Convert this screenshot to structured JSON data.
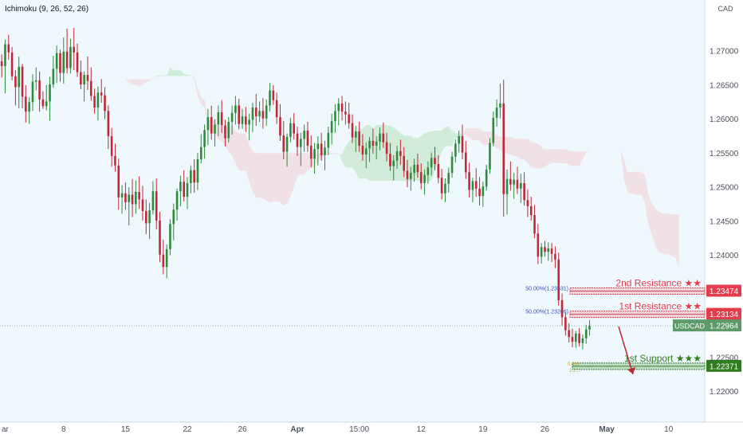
{
  "indicator": {
    "label": "Ichimoku (9, 26, 52, 26)"
  },
  "colors": {
    "plot_bg": "#eef8fd",
    "up": "#2e8b3a",
    "down": "#c0283a",
    "cloud_bull": "#cbe9d2",
    "cloud_bear": "#f1dde2",
    "resistance": "#e53c4b",
    "support": "#2f7d1e",
    "last_price": "#5c9a6a",
    "axis_text": "#4a4f5a"
  },
  "chart_data": {
    "type": "candlestick",
    "symbol": "USDCAD",
    "currency": "CAD",
    "ylim": [
      1.2155,
      1.2775
    ],
    "y_ticks": [
      "1.27000",
      "1.26500",
      "1.26000",
      "1.25500",
      "1.25000",
      "1.24500",
      "1.24000",
      "1.22500",
      "1.22000"
    ],
    "x_ticks": [
      "ar",
      "8",
      "15",
      "22",
      "26",
      "Apr",
      "15:00",
      "12",
      "19",
      "26",
      "May",
      "10"
    ],
    "x_tick_bars": [
      0,
      18,
      36,
      54,
      70,
      86,
      104,
      122,
      140,
      158,
      176,
      194
    ],
    "n_bars": 205,
    "candles": [
      [
        1.2685,
        1.2695,
        1.2661,
        1.2678
      ],
      [
        1.2678,
        1.2717,
        1.2638,
        1.271
      ],
      [
        1.271,
        1.2724,
        1.2687,
        1.2698
      ],
      [
        1.2698,
        1.2706,
        1.2657,
        1.2663
      ],
      [
        1.2663,
        1.2672,
        1.262,
        1.2647
      ],
      [
        1.2647,
        1.2692,
        1.2616,
        1.2677
      ],
      [
        1.2677,
        1.2681,
        1.2616,
        1.2633
      ],
      [
        1.2633,
        1.265,
        1.2595,
        1.2611
      ],
      [
        1.2611,
        1.2632,
        1.2593,
        1.2625
      ],
      [
        1.2625,
        1.2666,
        1.2612,
        1.2655
      ],
      [
        1.2655,
        1.2676,
        1.2642,
        1.2657
      ],
      [
        1.2657,
        1.267,
        1.2611,
        1.2629
      ],
      [
        1.2629,
        1.2641,
        1.2615,
        1.2619
      ],
      [
        1.2619,
        1.265,
        1.2613,
        1.2626
      ],
      [
        1.2626,
        1.2662,
        1.2598,
        1.2651
      ],
      [
        1.2651,
        1.2693,
        1.2646,
        1.2674
      ],
      [
        1.2674,
        1.2708,
        1.2653,
        1.2697
      ],
      [
        1.2697,
        1.2702,
        1.2655,
        1.2668
      ],
      [
        1.2668,
        1.272,
        1.2652,
        1.2699
      ],
      [
        1.2699,
        1.2733,
        1.2667,
        1.2675
      ],
      [
        1.2675,
        1.2718,
        1.2667,
        1.2706
      ],
      [
        1.2706,
        1.2734,
        1.2672,
        1.2698
      ],
      [
        1.2698,
        1.2711,
        1.2662,
        1.2669
      ],
      [
        1.2669,
        1.2686,
        1.2644,
        1.2651
      ],
      [
        1.2651,
        1.267,
        1.2626,
        1.2665
      ],
      [
        1.2665,
        1.2692,
        1.2643,
        1.2656
      ],
      [
        1.2656,
        1.2676,
        1.2627,
        1.2634
      ],
      [
        1.2634,
        1.2645,
        1.2608,
        1.2617
      ],
      [
        1.2617,
        1.2648,
        1.2598,
        1.2639
      ],
      [
        1.2639,
        1.2659,
        1.2624,
        1.2635
      ],
      [
        1.2635,
        1.2647,
        1.26,
        1.2612
      ],
      [
        1.2612,
        1.262,
        1.2556,
        1.2575
      ],
      [
        1.2575,
        1.2587,
        1.253,
        1.2546
      ],
      [
        1.2546,
        1.2564,
        1.2523,
        1.2532
      ],
      [
        1.2532,
        1.2542,
        1.2467,
        1.2485
      ],
      [
        1.2485,
        1.2503,
        1.2461,
        1.2491
      ],
      [
        1.2491,
        1.2507,
        1.2467,
        1.2478
      ],
      [
        1.2478,
        1.25,
        1.2444,
        1.2489
      ],
      [
        1.2489,
        1.2512,
        1.2456,
        1.2475
      ],
      [
        1.2475,
        1.251,
        1.2461,
        1.2493
      ],
      [
        1.2493,
        1.2516,
        1.2468,
        1.2482
      ],
      [
        1.2482,
        1.2502,
        1.2451,
        1.2465
      ],
      [
        1.2465,
        1.2482,
        1.2431,
        1.2447
      ],
      [
        1.2447,
        1.2477,
        1.2424,
        1.2466
      ],
      [
        1.2466,
        1.2509,
        1.246,
        1.2494
      ],
      [
        1.2494,
        1.2513,
        1.2438,
        1.2451
      ],
      [
        1.2451,
        1.2464,
        1.239,
        1.2401
      ],
      [
        1.2401,
        1.2423,
        1.2372,
        1.2383
      ],
      [
        1.2383,
        1.2416,
        1.2366,
        1.2409
      ],
      [
        1.2409,
        1.2453,
        1.24,
        1.2446
      ],
      [
        1.2446,
        1.2476,
        1.2422,
        1.2467
      ],
      [
        1.2467,
        1.2498,
        1.2451,
        1.2494
      ],
      [
        1.2494,
        1.2517,
        1.2472,
        1.2508
      ],
      [
        1.2508,
        1.2525,
        1.2479,
        1.2486
      ],
      [
        1.2486,
        1.2515,
        1.2468,
        1.2506
      ],
      [
        1.2506,
        1.2532,
        1.2491,
        1.2525
      ],
      [
        1.2525,
        1.2541,
        1.2492,
        1.2507
      ],
      [
        1.2507,
        1.255,
        1.2496,
        1.2541
      ],
      [
        1.2541,
        1.2578,
        1.2535,
        1.2559
      ],
      [
        1.2559,
        1.2592,
        1.2542,
        1.2584
      ],
      [
        1.2584,
        1.2615,
        1.2562,
        1.2603
      ],
      [
        1.2603,
        1.262,
        1.257,
        1.2579
      ],
      [
        1.2579,
        1.26,
        1.256,
        1.2592
      ],
      [
        1.2592,
        1.262,
        1.2575,
        1.261
      ],
      [
        1.261,
        1.2628,
        1.258,
        1.2591
      ],
      [
        1.2591,
        1.2599,
        1.256,
        1.2572
      ],
      [
        1.2572,
        1.2603,
        1.2566,
        1.2596
      ],
      [
        1.2596,
        1.262,
        1.2577,
        1.2609
      ],
      [
        1.2609,
        1.2634,
        1.2592,
        1.262
      ],
      [
        1.262,
        1.263,
        1.2585,
        1.2593
      ],
      [
        1.2593,
        1.2615,
        1.2586,
        1.2604
      ],
      [
        1.2604,
        1.2618,
        1.2581,
        1.2592
      ],
      [
        1.2592,
        1.2608,
        1.2569,
        1.2599
      ],
      [
        1.2599,
        1.2624,
        1.2581,
        1.2617
      ],
      [
        1.2617,
        1.2637,
        1.259,
        1.2604
      ],
      [
        1.2604,
        1.2626,
        1.2596,
        1.2612
      ],
      [
        1.2612,
        1.2631,
        1.2586,
        1.2601
      ],
      [
        1.2601,
        1.2629,
        1.259,
        1.262
      ],
      [
        1.262,
        1.2653,
        1.2611,
        1.2642
      ],
      [
        1.2642,
        1.265,
        1.2621,
        1.2628
      ],
      [
        1.2628,
        1.2639,
        1.2593,
        1.2603
      ],
      [
        1.2603,
        1.2622,
        1.2568,
        1.2576
      ],
      [
        1.2576,
        1.2597,
        1.2541,
        1.2552
      ],
      [
        1.2552,
        1.2579,
        1.253,
        1.2574
      ],
      [
        1.2574,
        1.2602,
        1.2566,
        1.2594
      ],
      [
        1.2594,
        1.2609,
        1.257,
        1.2579
      ],
      [
        1.2579,
        1.2589,
        1.2546,
        1.2559
      ],
      [
        1.2559,
        1.258,
        1.2531,
        1.2571
      ],
      [
        1.2571,
        1.2592,
        1.2552,
        1.2583
      ],
      [
        1.2583,
        1.2596,
        1.2552,
        1.2561
      ],
      [
        1.2561,
        1.2576,
        1.2529,
        1.2542
      ],
      [
        1.2542,
        1.2565,
        1.252,
        1.2556
      ],
      [
        1.2556,
        1.2575,
        1.2532,
        1.2564
      ],
      [
        1.2564,
        1.258,
        1.2539,
        1.2547
      ],
      [
        1.2547,
        1.2568,
        1.2525,
        1.2558
      ],
      [
        1.2558,
        1.2589,
        1.2547,
        1.258
      ],
      [
        1.258,
        1.2608,
        1.2563,
        1.2597
      ],
      [
        1.2597,
        1.2622,
        1.258,
        1.2612
      ],
      [
        1.2612,
        1.2631,
        1.2591,
        1.2623
      ],
      [
        1.2623,
        1.2634,
        1.2598,
        1.2611
      ],
      [
        1.2611,
        1.2626,
        1.2592,
        1.2607
      ],
      [
        1.2607,
        1.2624,
        1.2586,
        1.2594
      ],
      [
        1.2594,
        1.2607,
        1.2565,
        1.2573
      ],
      [
        1.2573,
        1.259,
        1.2552,
        1.2582
      ],
      [
        1.2582,
        1.2596,
        1.2552,
        1.2561
      ],
      [
        1.2561,
        1.2578,
        1.2539,
        1.2548
      ],
      [
        1.2548,
        1.2566,
        1.2528,
        1.2557
      ],
      [
        1.2557,
        1.2574,
        1.2537,
        1.2568
      ],
      [
        1.2568,
        1.2586,
        1.2549,
        1.2561
      ],
      [
        1.2561,
        1.2575,
        1.2541,
        1.2567
      ],
      [
        1.2567,
        1.2588,
        1.2554,
        1.2579
      ],
      [
        1.2579,
        1.2595,
        1.2558,
        1.2566
      ],
      [
        1.2566,
        1.258,
        1.2538,
        1.2549
      ],
      [
        1.2549,
        1.2565,
        1.2524,
        1.2531
      ],
      [
        1.2531,
        1.2547,
        1.251,
        1.2539
      ],
      [
        1.2539,
        1.2561,
        1.2527,
        1.2553
      ],
      [
        1.2553,
        1.257,
        1.2533,
        1.2546
      ],
      [
        1.2546,
        1.2559,
        1.2515,
        1.2524
      ],
      [
        1.2524,
        1.254,
        1.25,
        1.2512
      ],
      [
        1.2512,
        1.253,
        1.2495,
        1.2521
      ],
      [
        1.2521,
        1.2542,
        1.2508,
        1.2533
      ],
      [
        1.2533,
        1.2549,
        1.2514,
        1.2522
      ],
      [
        1.2522,
        1.2535,
        1.2497,
        1.2506
      ],
      [
        1.2506,
        1.2526,
        1.2489,
        1.2518
      ],
      [
        1.2518,
        1.2538,
        1.2505,
        1.2529
      ],
      [
        1.2529,
        1.2551,
        1.2517,
        1.2543
      ],
      [
        1.2543,
        1.2559,
        1.2525,
        1.2534
      ],
      [
        1.2534,
        1.2547,
        1.2506,
        1.2514
      ],
      [
        1.2514,
        1.2527,
        1.2482,
        1.2491
      ],
      [
        1.2491,
        1.2513,
        1.2478,
        1.2505
      ],
      [
        1.2505,
        1.2529,
        1.2492,
        1.2521
      ],
      [
        1.2521,
        1.2552,
        1.2514,
        1.2545
      ],
      [
        1.2545,
        1.257,
        1.2536,
        1.2564
      ],
      [
        1.2564,
        1.2583,
        1.2551,
        1.2575
      ],
      [
        1.2575,
        1.2592,
        1.2541,
        1.2551
      ],
      [
        1.2551,
        1.2568,
        1.2512,
        1.2522
      ],
      [
        1.2522,
        1.2536,
        1.2485,
        1.2496
      ],
      [
        1.2496,
        1.2514,
        1.2478,
        1.2509
      ],
      [
        1.2509,
        1.2528,
        1.2486,
        1.2498
      ],
      [
        1.2498,
        1.2515,
        1.2473,
        1.2487
      ],
      [
        1.2487,
        1.2508,
        1.2471,
        1.2501
      ],
      [
        1.2501,
        1.2533,
        1.2495,
        1.2526
      ],
      [
        1.2526,
        1.2572,
        1.252,
        1.2565
      ],
      [
        1.2565,
        1.2611,
        1.256,
        1.2602
      ],
      [
        1.2602,
        1.2629,
        1.2589,
        1.2617
      ],
      [
        1.2617,
        1.2652,
        1.2601,
        1.2623
      ],
      [
        1.2623,
        1.2658,
        1.2457,
        1.249
      ],
      [
        1.249,
        1.2526,
        1.246,
        1.2512
      ],
      [
        1.2512,
        1.2538,
        1.2495,
        1.2504
      ],
      [
        1.2504,
        1.2521,
        1.2483,
        1.2511
      ],
      [
        1.2511,
        1.253,
        1.249,
        1.2498
      ],
      [
        1.2498,
        1.252,
        1.2477,
        1.2506
      ],
      [
        1.2506,
        1.2522,
        1.2473,
        1.2481
      ],
      [
        1.2481,
        1.2497,
        1.2456,
        1.2472
      ],
      [
        1.2472,
        1.2486,
        1.2451,
        1.2459
      ],
      [
        1.2459,
        1.2474,
        1.2425,
        1.2432
      ],
      [
        1.2432,
        1.2446,
        1.2387,
        1.2398
      ],
      [
        1.2398,
        1.2418,
        1.2388,
        1.2412
      ],
      [
        1.2412,
        1.2421,
        1.2398,
        1.2405
      ],
      [
        1.2405,
        1.2419,
        1.2392,
        1.241
      ],
      [
        1.241,
        1.2418,
        1.239,
        1.2402
      ],
      [
        1.2402,
        1.2413,
        1.2381,
        1.2394
      ],
      [
        1.2394,
        1.2404,
        1.2326,
        1.2334
      ],
      [
        1.2334,
        1.2344,
        1.2297,
        1.2309
      ],
      [
        1.2309,
        1.2316,
        1.2282,
        1.229
      ],
      [
        1.229,
        1.23,
        1.2272,
        1.228
      ],
      [
        1.228,
        1.2292,
        1.2265,
        1.2273
      ],
      [
        1.2273,
        1.2289,
        1.2264,
        1.2285
      ],
      [
        1.2285,
        1.2293,
        1.2266,
        1.2271
      ],
      [
        1.2271,
        1.2284,
        1.2262,
        1.2278
      ],
      [
        1.2278,
        1.2298,
        1.227,
        1.2291
      ],
      [
        1.2291,
        1.2305,
        1.2282,
        1.2296
      ]
    ],
    "current_price": {
      "label": "USDCAD",
      "value": "1.22964"
    },
    "levels": [
      {
        "name": "2nd Resistance",
        "stars": "★★",
        "value": "1.23474",
        "fib": "50.00%(1.23531)",
        "kind": "resistance"
      },
      {
        "name": "1st Resistance",
        "stars": "★★",
        "value": "1.23134",
        "fib": "50.00%(1.23206)",
        "kind": "resistance"
      },
      {
        "name": "1st Support",
        "stars": "★★★",
        "value": "1.22371",
        "fib": "",
        "kind": "support"
      }
    ],
    "legend": "none",
    "grid": false
  },
  "annotations": {
    "small_labels": [
      "0.0%",
      "1.2…"
    ]
  }
}
